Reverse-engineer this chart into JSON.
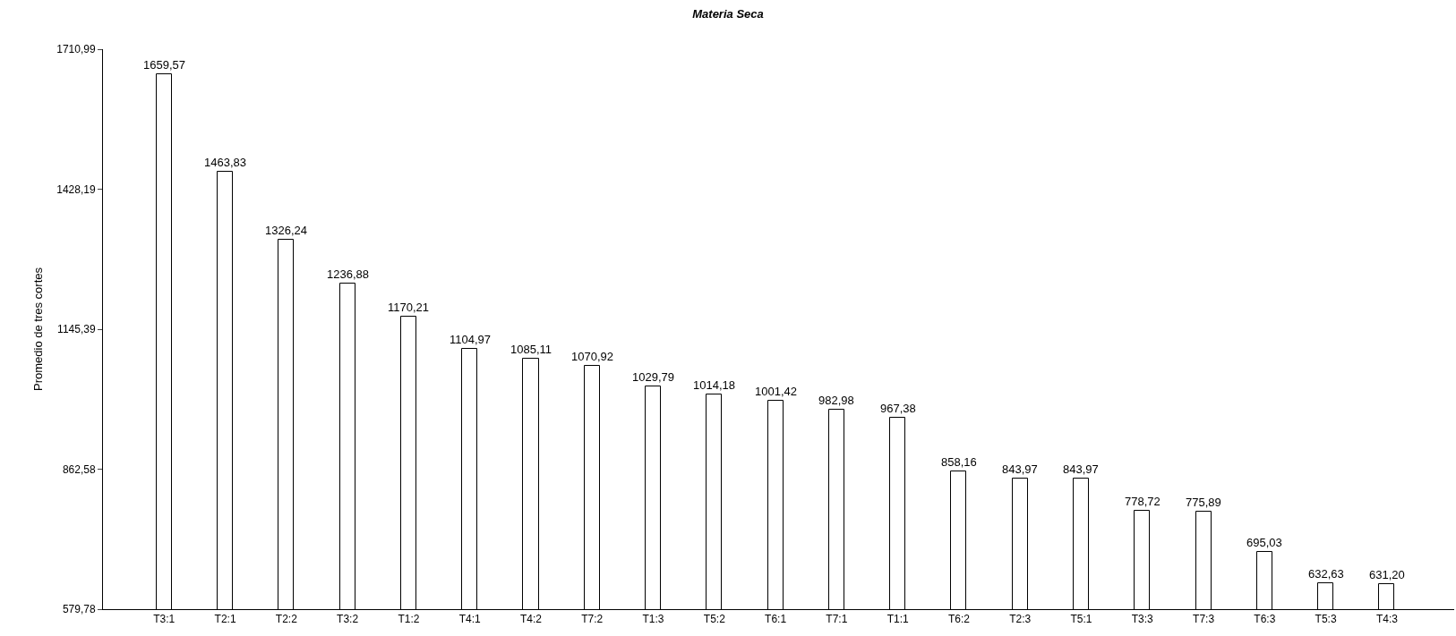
{
  "chart_data": {
    "type": "bar",
    "title": "Materia Seca",
    "ylabel": "Promedio de tres cortes",
    "categories": [
      "T3:1",
      "T2:1",
      "T2:2",
      "T3:2",
      "T1:2",
      "T4:1",
      "T4:2",
      "T7:2",
      "T1:3",
      "T5:2",
      "T6:1",
      "T7:1",
      "T1:1",
      "T6:2",
      "T2:3",
      "T5:1",
      "T3:3",
      "T7:3",
      "T6:3",
      "T5:3",
      "T4:3"
    ],
    "values": [
      1659.57,
      1463.83,
      1326.24,
      1236.88,
      1170.21,
      1104.97,
      1085.11,
      1070.92,
      1029.79,
      1014.18,
      1001.42,
      982.98,
      967.38,
      858.16,
      843.97,
      843.97,
      778.72,
      775.89,
      695.03,
      632.63,
      631.2
    ],
    "value_labels": [
      "1659,57",
      "1463,83",
      "1326,24",
      "1236,88",
      "1170,21",
      "1104,97",
      "1085,11",
      "1070,92",
      "1029,79",
      "1014,18",
      "1001,42",
      "982,98",
      "967,38",
      "858,16",
      "843,97",
      "843,97",
      "778,72",
      "775,89",
      "695,03",
      "632,63",
      "631,20"
    ],
    "color": "#ffffff",
    "ylim": [
      579.78,
      1710.99
    ],
    "yticks": [
      {
        "value": 579.78,
        "label": "579,78"
      },
      {
        "value": 862.58,
        "label": "862,58"
      },
      {
        "value": 1145.39,
        "label": "1145,39"
      },
      {
        "value": 1428.19,
        "label": "1428,19"
      },
      {
        "value": 1710.99,
        "label": "1710,99"
      }
    ],
    "grid": false,
    "legend": false
  }
}
